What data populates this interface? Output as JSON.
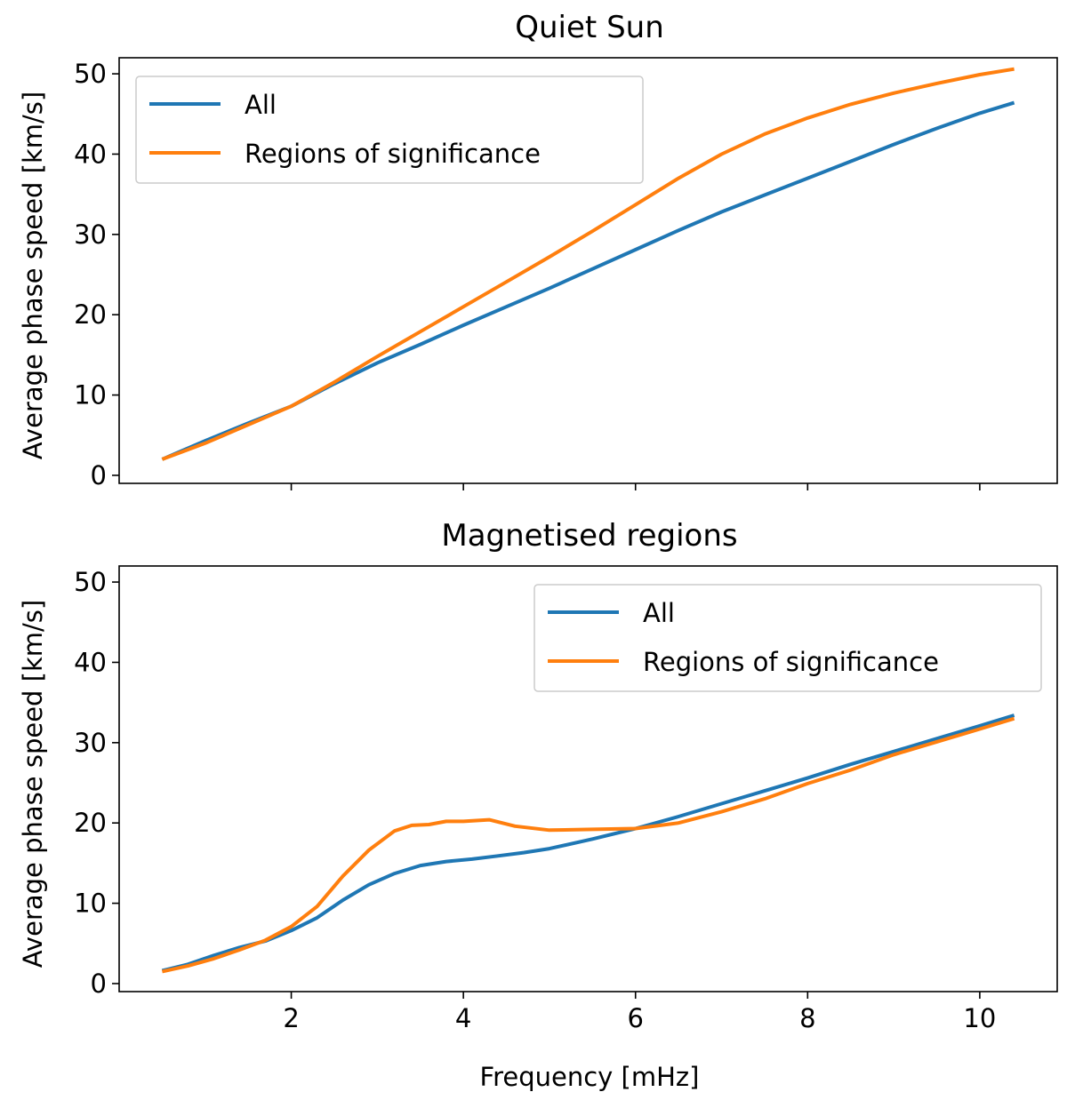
{
  "chart_data": [
    {
      "type": "line",
      "title": "Quiet Sun",
      "xlabel": "",
      "ylabel": "Average phase speed [km/s]",
      "xlim": [
        0.0,
        10.9
      ],
      "ylim": [
        -1.0,
        52.0
      ],
      "xticks": [
        2,
        4,
        6,
        8,
        10
      ],
      "yticks": [
        0,
        10,
        20,
        30,
        40,
        50
      ],
      "show_xtick_labels": false,
      "legend": {
        "position": "top-left",
        "entries": [
          "All",
          "Regions of significance"
        ]
      },
      "series": [
        {
          "name": "All",
          "color": "#1f77b4",
          "x": [
            0.5,
            1.0,
            1.5,
            2.0,
            2.5,
            3.0,
            3.5,
            4.0,
            4.5,
            5.0,
            5.5,
            6.0,
            6.5,
            7.0,
            7.5,
            8.0,
            8.5,
            9.0,
            9.5,
            10.0,
            10.4
          ],
          "y": [
            2.0,
            4.3,
            6.5,
            8.6,
            11.4,
            14.0,
            16.3,
            18.7,
            21.0,
            23.3,
            25.7,
            28.1,
            30.5,
            32.8,
            34.9,
            37.0,
            39.1,
            41.2,
            43.2,
            45.1,
            46.4
          ]
        },
        {
          "name": "Regions of significance",
          "color": "#ff7f0e",
          "x": [
            0.5,
            1.0,
            1.5,
            2.0,
            2.5,
            3.0,
            3.5,
            4.0,
            4.5,
            5.0,
            5.5,
            6.0,
            6.5,
            7.0,
            7.5,
            8.0,
            8.5,
            9.0,
            9.5,
            10.0,
            10.4
          ],
          "y": [
            2.0,
            4.0,
            6.3,
            8.6,
            11.6,
            14.8,
            17.9,
            21.0,
            24.1,
            27.2,
            30.4,
            33.7,
            37.0,
            40.0,
            42.5,
            44.5,
            46.2,
            47.6,
            48.8,
            49.9,
            50.6
          ]
        }
      ]
    },
    {
      "type": "line",
      "title": "Magnetised regions",
      "xlabel": "Frequency [mHz]",
      "ylabel": "Average phase speed [km/s]",
      "xlim": [
        0.0,
        10.9
      ],
      "ylim": [
        -1.0,
        52.0
      ],
      "xticks": [
        2,
        4,
        6,
        8,
        10
      ],
      "yticks": [
        0,
        10,
        20,
        30,
        40,
        50
      ],
      "show_xtick_labels": true,
      "legend": {
        "position": "top-right",
        "entries": [
          "All",
          "Regions of significance"
        ]
      },
      "series": [
        {
          "name": "All",
          "color": "#1f77b4",
          "x": [
            0.5,
            0.8,
            1.1,
            1.4,
            1.7,
            2.0,
            2.3,
            2.6,
            2.9,
            3.2,
            3.5,
            3.8,
            4.1,
            4.4,
            4.7,
            5.0,
            5.5,
            6.0,
            6.5,
            7.0,
            7.5,
            8.0,
            8.5,
            9.0,
            9.5,
            10.0,
            10.4
          ],
          "y": [
            1.6,
            2.4,
            3.5,
            4.5,
            5.3,
            6.6,
            8.2,
            10.4,
            12.3,
            13.7,
            14.7,
            15.2,
            15.5,
            15.9,
            16.3,
            16.8,
            18.0,
            19.3,
            20.8,
            22.4,
            24.0,
            25.6,
            27.3,
            28.9,
            30.5,
            32.1,
            33.4
          ]
        },
        {
          "name": "Regions of significance",
          "color": "#ff7f0e",
          "x": [
            0.5,
            0.8,
            1.1,
            1.4,
            1.7,
            2.0,
            2.3,
            2.6,
            2.9,
            3.2,
            3.4,
            3.6,
            3.8,
            4.0,
            4.3,
            4.6,
            5.0,
            5.5,
            6.0,
            6.5,
            7.0,
            7.5,
            8.0,
            8.5,
            9.0,
            9.5,
            10.0,
            10.4
          ],
          "y": [
            1.5,
            2.2,
            3.1,
            4.2,
            5.4,
            7.1,
            9.6,
            13.4,
            16.6,
            19.0,
            19.7,
            19.8,
            20.2,
            20.2,
            20.4,
            19.6,
            19.1,
            19.2,
            19.3,
            20.0,
            21.4,
            23.0,
            24.9,
            26.6,
            28.5,
            30.1,
            31.7,
            33.0
          ]
        }
      ]
    }
  ]
}
